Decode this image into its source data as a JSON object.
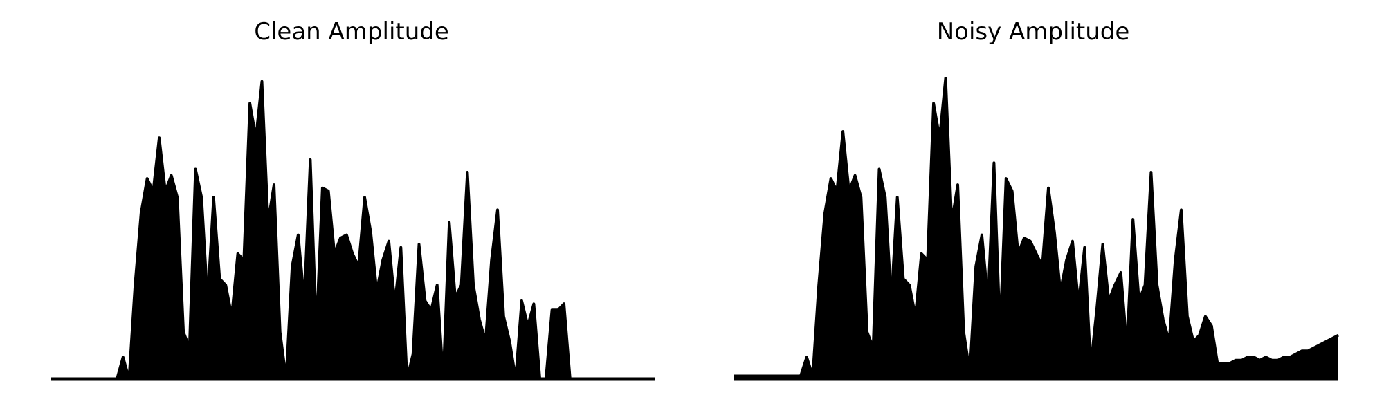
{
  "colors": {
    "line": "#000000",
    "background": "#ffffff"
  },
  "chart_data": [
    {
      "type": "line",
      "title": "Clean Amplitude",
      "xlabel": "",
      "ylabel": "",
      "axes_visible": false,
      "grid": false,
      "xlim": [
        0,
        100
      ],
      "ylim": [
        0,
        1
      ],
      "envelope_y_approx": [
        0.0,
        0.0,
        0.0,
        0.0,
        0.0,
        0.0,
        0.0,
        0.0,
        0.0,
        0.0,
        0.0,
        0.0,
        0.07,
        0.0,
        0.3,
        0.53,
        0.64,
        0.6,
        0.77,
        0.6,
        0.65,
        0.58,
        0.15,
        0.1,
        0.67,
        0.58,
        0.25,
        0.58,
        0.32,
        0.3,
        0.2,
        0.4,
        0.38,
        0.88,
        0.77,
        0.95,
        0.5,
        0.62,
        0.15,
        0.0,
        0.36,
        0.46,
        0.25,
        0.7,
        0.15,
        0.61,
        0.6,
        0.4,
        0.45,
        0.46,
        0.4,
        0.36,
        0.58,
        0.47,
        0.28,
        0.38,
        0.44,
        0.24,
        0.42,
        0.0,
        0.08,
        0.43,
        0.25,
        0.22,
        0.3,
        0.0,
        0.5,
        0.26,
        0.3,
        0.66,
        0.3,
        0.19,
        0.12,
        0.38,
        0.54,
        0.2,
        0.12,
        0.0,
        0.25,
        0.17,
        0.24,
        0.0,
        0.0,
        0.22,
        0.22,
        0.24,
        0.0,
        0.0,
        0.0,
        0.0,
        0.0,
        0.0,
        0.0,
        0.0,
        0.0,
        0.0,
        0.0,
        0.0,
        0.0,
        0.0,
        0.0
      ]
    },
    {
      "type": "line",
      "title": "Noisy Amplitude",
      "xlabel": "",
      "ylabel": "",
      "axes_visible": false,
      "grid": false,
      "xlim": [
        0,
        100
      ],
      "ylim": [
        0,
        1
      ],
      "envelope_y_approx": [
        0.01,
        0.01,
        0.01,
        0.01,
        0.01,
        0.01,
        0.01,
        0.01,
        0.01,
        0.01,
        0.01,
        0.01,
        0.07,
        0.01,
        0.3,
        0.53,
        0.64,
        0.6,
        0.79,
        0.6,
        0.65,
        0.58,
        0.15,
        0.1,
        0.67,
        0.58,
        0.25,
        0.58,
        0.32,
        0.3,
        0.2,
        0.4,
        0.38,
        0.88,
        0.77,
        0.96,
        0.5,
        0.62,
        0.15,
        0.02,
        0.36,
        0.46,
        0.25,
        0.69,
        0.15,
        0.64,
        0.6,
        0.4,
        0.45,
        0.44,
        0.4,
        0.36,
        0.61,
        0.47,
        0.28,
        0.38,
        0.44,
        0.24,
        0.42,
        0.04,
        0.22,
        0.43,
        0.25,
        0.3,
        0.34,
        0.1,
        0.51,
        0.25,
        0.3,
        0.66,
        0.3,
        0.19,
        0.12,
        0.38,
        0.54,
        0.2,
        0.12,
        0.14,
        0.2,
        0.17,
        0.05,
        0.05,
        0.05,
        0.06,
        0.06,
        0.07,
        0.07,
        0.06,
        0.07,
        0.06,
        0.06,
        0.07,
        0.07,
        0.08,
        0.09,
        0.09,
        0.1,
        0.11,
        0.12,
        0.13,
        0.14
      ]
    }
  ]
}
